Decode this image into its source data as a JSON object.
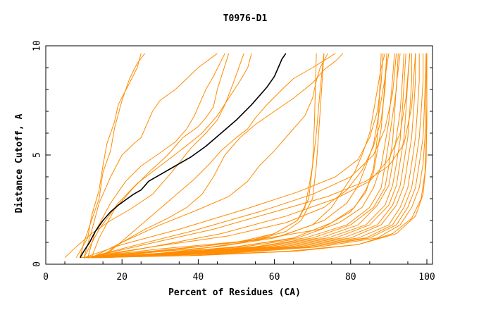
{
  "chart_data": {
    "type": "line",
    "title": "T0976-D1",
    "xlabel": "Percent of Residues (CA)",
    "ylabel": "Distance Cutoff, A",
    "xlim": [
      0,
      100
    ],
    "ylim": [
      0,
      10
    ],
    "x_ticks": [
      "0",
      "20",
      "40",
      "60",
      "80",
      "100"
    ],
    "y_ticks": [
      "0",
      "5",
      "10"
    ],
    "grid": false,
    "legend": "none",
    "colors": {
      "highlight": "#000000",
      "other": "#ff8c00",
      "axes": "#000000"
    },
    "highlight": {
      "x": [
        9,
        10,
        11.5,
        13,
        15,
        17,
        19,
        21,
        23,
        25,
        27,
        30,
        34,
        38,
        42,
        46,
        50,
        54,
        58,
        60,
        61,
        62,
        63
      ],
      "y": [
        0.3,
        0.6,
        1.0,
        1.5,
        2.0,
        2.4,
        2.7,
        2.95,
        3.2,
        3.4,
        3.8,
        4.1,
        4.5,
        4.9,
        5.4,
        6.0,
        6.6,
        7.3,
        8.1,
        8.6,
        9.0,
        9.4,
        9.65
      ]
    },
    "series": [
      {
        "x": [
          8,
          11,
          12,
          14,
          15,
          16,
          18,
          19,
          22,
          24,
          25
        ],
        "y": [
          0.3,
          1.2,
          2.2,
          3.4,
          4.5,
          5.5,
          6.5,
          7.3,
          8.3,
          9.0,
          9.65
        ]
      },
      {
        "x": [
          9,
          10,
          12,
          14,
          15,
          17,
          18,
          20,
          22,
          24,
          26
        ],
        "y": [
          0.3,
          1.0,
          2.0,
          3.0,
          4.2,
          5.2,
          6.2,
          7.5,
          8.5,
          9.2,
          9.65
        ]
      },
      {
        "x": [
          10,
          12,
          14,
          17,
          20,
          23,
          25,
          26,
          28,
          30,
          34,
          37,
          40,
          45
        ],
        "y": [
          0.3,
          1.5,
          2.8,
          4.0,
          5.0,
          5.5,
          5.8,
          6.2,
          7.0,
          7.5,
          8.0,
          8.5,
          9.0,
          9.65
        ]
      },
      {
        "x": [
          11,
          13,
          17,
          21,
          25,
          30,
          34,
          37,
          39,
          40,
          42,
          44,
          47
        ],
        "y": [
          0.3,
          1.5,
          2.8,
          3.8,
          4.5,
          5.1,
          5.6,
          6.2,
          6.8,
          7.2,
          8.0,
          8.6,
          9.65
        ]
      },
      {
        "x": [
          12,
          14,
          18,
          23,
          27,
          32,
          36,
          40,
          42,
          44,
          45,
          48
        ],
        "y": [
          0.3,
          1.2,
          2.5,
          3.5,
          4.2,
          5.0,
          5.8,
          6.3,
          6.7,
          7.2,
          8.0,
          9.65
        ]
      },
      {
        "x": [
          5,
          8,
          12,
          17,
          22,
          28,
          33,
          38,
          42,
          45,
          47,
          49,
          52
        ],
        "y": [
          0.3,
          0.8,
          1.4,
          2.0,
          2.5,
          3.2,
          4.2,
          5.3,
          6.0,
          6.6,
          7.3,
          8.2,
          9.65
        ]
      },
      {
        "x": [
          10,
          14,
          19,
          24,
          30,
          36,
          41,
          45,
          48,
          51,
          53,
          54
        ],
        "y": [
          0.3,
          1.6,
          2.8,
          3.7,
          4.5,
          5.3,
          6.0,
          6.8,
          7.6,
          8.4,
          9.0,
          9.65
        ]
      },
      {
        "x": [
          15,
          21,
          27,
          33,
          39,
          43,
          46,
          50,
          53,
          55,
          58,
          62,
          65,
          70,
          76
        ],
        "y": [
          0.3,
          1.2,
          2.1,
          3.0,
          3.9,
          4.6,
          5.2,
          5.8,
          6.2,
          6.7,
          7.3,
          8.0,
          8.5,
          9.0,
          9.65
        ]
      },
      {
        "x": [
          14,
          20,
          26,
          32,
          37,
          41,
          44,
          47,
          51,
          55,
          60,
          65,
          70,
          73,
          76,
          78
        ],
        "y": [
          0.3,
          1.0,
          1.6,
          2.1,
          2.6,
          3.2,
          4.0,
          5.0,
          5.8,
          6.4,
          7.0,
          7.6,
          8.3,
          8.9,
          9.3,
          9.65
        ]
      },
      {
        "x": [
          12,
          20,
          30,
          40,
          48,
          53,
          56,
          60,
          64,
          68,
          70,
          71,
          72,
          74
        ],
        "y": [
          0.3,
          1.0,
          1.8,
          2.5,
          3.1,
          3.8,
          4.5,
          5.2,
          6.0,
          6.8,
          7.6,
          8.4,
          9.0,
          9.65
        ]
      },
      {
        "x": [
          10,
          25,
          40,
          55,
          63,
          67,
          70,
          71,
          72,
          73
        ],
        "y": [
          0.3,
          0.5,
          0.8,
          1.1,
          1.5,
          2.0,
          3.0,
          4.5,
          7.0,
          9.65
        ]
      },
      {
        "x": [
          10,
          25,
          40,
          52,
          60,
          66,
          69,
          70,
          71,
          72,
          73
        ],
        "y": [
          0.3,
          0.4,
          0.7,
          1.0,
          1.4,
          2.0,
          3.0,
          4.5,
          6.0,
          8.0,
          9.65
        ]
      },
      {
        "x": [
          10,
          30,
          50,
          60,
          66,
          68,
          69,
          70,
          70.5,
          71
        ],
        "y": [
          0.3,
          0.6,
          1.0,
          1.4,
          2.0,
          2.6,
          3.5,
          4.5,
          6.5,
          9.65
        ]
      },
      {
        "x": [
          9,
          25,
          45,
          60,
          70,
          75,
          78,
          81,
          83,
          85,
          86,
          87,
          88,
          89
        ],
        "y": [
          0.3,
          0.5,
          0.8,
          1.2,
          1.8,
          2.6,
          3.4,
          4.2,
          5.0,
          6.0,
          7.0,
          8.0,
          9.0,
          9.65
        ]
      },
      {
        "x": [
          10,
          28,
          45,
          62,
          73,
          79,
          82,
          84,
          86,
          87,
          88,
          89,
          90
        ],
        "y": [
          0.3,
          0.6,
          0.9,
          1.3,
          2.0,
          2.8,
          3.6,
          4.5,
          5.5,
          6.5,
          7.5,
          8.5,
          9.65
        ]
      },
      {
        "x": [
          10,
          30,
          50,
          65,
          75,
          81,
          84,
          86,
          87,
          88,
          88.5,
          89,
          89.5
        ],
        "y": [
          0.3,
          0.5,
          0.8,
          1.2,
          1.9,
          2.6,
          3.4,
          4.2,
          5.2,
          6.2,
          7.2,
          8.4,
          9.65
        ]
      },
      {
        "x": [
          9,
          30,
          50,
          66,
          77,
          83,
          86,
          88,
          89,
          90,
          90.5,
          91,
          91.5
        ],
        "y": [
          0.3,
          0.5,
          0.8,
          1.2,
          1.9,
          2.6,
          3.5,
          4.5,
          5.5,
          6.5,
          7.5,
          8.5,
          9.65
        ]
      },
      {
        "x": [
          10,
          30,
          52,
          68,
          79,
          85,
          88,
          89,
          90,
          91,
          92,
          92.5
        ],
        "y": [
          0.3,
          0.5,
          0.8,
          1.2,
          1.8,
          2.6,
          3.5,
          4.5,
          5.6,
          6.8,
          8.0,
          9.65
        ]
      },
      {
        "x": [
          11,
          32,
          55,
          70,
          80,
          86,
          89,
          90,
          91,
          91.5,
          92,
          93
        ],
        "y": [
          0.3,
          0.5,
          0.8,
          1.2,
          1.8,
          2.6,
          3.5,
          4.5,
          5.6,
          6.8,
          8.2,
          9.65
        ]
      },
      {
        "x": [
          10,
          34,
          56,
          72,
          82,
          87,
          90,
          91,
          92,
          93,
          93.5,
          94
        ],
        "y": [
          0.3,
          0.5,
          0.8,
          1.2,
          1.8,
          2.7,
          3.6,
          4.6,
          5.8,
          7.0,
          8.2,
          9.65
        ]
      },
      {
        "x": [
          11,
          35,
          58,
          74,
          84,
          89,
          91,
          92,
          93,
          93.5,
          94,
          94.5
        ],
        "y": [
          0.3,
          0.5,
          0.8,
          1.2,
          1.8,
          2.7,
          3.6,
          4.6,
          5.7,
          6.9,
          8.2,
          9.65
        ]
      },
      {
        "x": [
          12,
          36,
          60,
          76,
          85,
          90,
          92,
          93,
          94,
          94.5,
          95,
          95.5
        ],
        "y": [
          0.3,
          0.5,
          0.8,
          1.2,
          1.8,
          2.7,
          3.6,
          4.7,
          5.8,
          7.0,
          8.4,
          9.65
        ]
      },
      {
        "x": [
          12,
          38,
          62,
          78,
          87,
          91,
          93,
          94,
          95,
          95.5,
          96,
          96
        ],
        "y": [
          0.3,
          0.5,
          0.8,
          1.2,
          1.8,
          2.7,
          3.6,
          4.7,
          5.8,
          7.0,
          8.4,
          9.65
        ]
      },
      {
        "x": [
          13,
          40,
          64,
          80,
          88,
          92,
          94,
          95,
          96,
          96.5,
          97,
          97
        ],
        "y": [
          0.3,
          0.5,
          0.8,
          1.2,
          1.8,
          2.7,
          3.6,
          4.7,
          5.8,
          7.0,
          8.4,
          9.65
        ]
      },
      {
        "x": [
          13,
          42,
          66,
          82,
          90,
          93,
          95,
          96,
          97,
          97.5,
          98,
          98
        ],
        "y": [
          0.3,
          0.5,
          0.8,
          1.2,
          1.8,
          2.6,
          3.5,
          4.6,
          5.8,
          7.0,
          8.4,
          9.65
        ]
      },
      {
        "x": [
          14,
          44,
          68,
          84,
          91,
          94,
          96,
          97,
          98,
          98.5,
          99,
          99
        ],
        "y": [
          0.3,
          0.5,
          0.8,
          1.2,
          1.8,
          2.6,
          3.5,
          4.6,
          5.8,
          7.0,
          8.4,
          9.65
        ]
      },
      {
        "x": [
          14,
          46,
          70,
          85,
          92,
          95,
          97,
          98,
          99,
          99.3,
          99.6,
          99.8
        ],
        "y": [
          0.3,
          0.5,
          0.8,
          1.2,
          1.8,
          2.6,
          3.5,
          4.6,
          5.8,
          7.0,
          8.4,
          9.65
        ]
      },
      {
        "x": [
          15,
          48,
          72,
          87,
          93,
          96,
          98,
          99,
          99.5,
          99.7,
          99.8,
          99.9
        ],
        "y": [
          0.3,
          0.5,
          0.8,
          1.2,
          1.8,
          2.6,
          3.5,
          4.6,
          5.8,
          7.0,
          8.4,
          9.65
        ]
      },
      {
        "x": [
          12,
          40,
          66,
          82,
          91,
          96,
          98.5,
          99.5,
          99.8,
          100,
          100
        ],
        "y": [
          0.3,
          0.4,
          0.6,
          0.9,
          1.4,
          2.1,
          3.0,
          4.2,
          5.6,
          7.5,
          9.65
        ]
      },
      {
        "x": [
          11,
          38,
          64,
          82,
          92,
          97,
          99,
          99.8,
          100,
          100
        ],
        "y": [
          0.3,
          0.4,
          0.6,
          0.9,
          1.4,
          2.2,
          3.2,
          4.6,
          6.5,
          9.65
        ]
      },
      {
        "x": [
          10,
          30,
          55,
          72,
          80,
          84,
          86,
          87,
          87.5,
          88
        ],
        "y": [
          0.3,
          0.7,
          1.1,
          1.6,
          2.4,
          3.3,
          4.4,
          5.8,
          7.5,
          9.65
        ]
      },
      {
        "x": [
          10,
          28,
          48,
          63,
          73,
          79,
          83,
          86,
          88,
          89,
          89.5
        ],
        "y": [
          0.3,
          0.8,
          1.3,
          1.9,
          2.6,
          3.4,
          4.3,
          5.4,
          6.6,
          8.0,
          9.65
        ]
      },
      {
        "x": [
          10,
          20,
          35,
          52,
          66,
          76,
          82,
          85,
          87,
          88,
          88.5
        ],
        "y": [
          0.3,
          0.9,
          1.6,
          2.5,
          3.3,
          4.0,
          4.8,
          5.8,
          7.0,
          8.3,
          9.65
        ]
      },
      {
        "x": [
          11,
          22,
          38,
          56,
          70,
          80,
          86,
          89,
          91,
          92
        ],
        "y": [
          0.3,
          0.8,
          1.5,
          2.4,
          3.2,
          4.0,
          5.0,
          6.2,
          7.8,
          9.65
        ]
      },
      {
        "x": [
          12,
          28,
          46,
          63,
          76,
          85,
          90,
          93,
          94.5,
          95.5
        ],
        "y": [
          0.3,
          0.8,
          1.4,
          2.2,
          3.0,
          3.8,
          4.8,
          6.0,
          7.6,
          9.65
        ]
      },
      {
        "x": [
          11,
          26,
          44,
          60,
          74,
          84,
          90,
          94,
          96,
          97
        ],
        "y": [
          0.3,
          0.9,
          1.6,
          2.4,
          3.1,
          3.8,
          4.5,
          5.5,
          7.2,
          9.65
        ]
      }
    ]
  }
}
